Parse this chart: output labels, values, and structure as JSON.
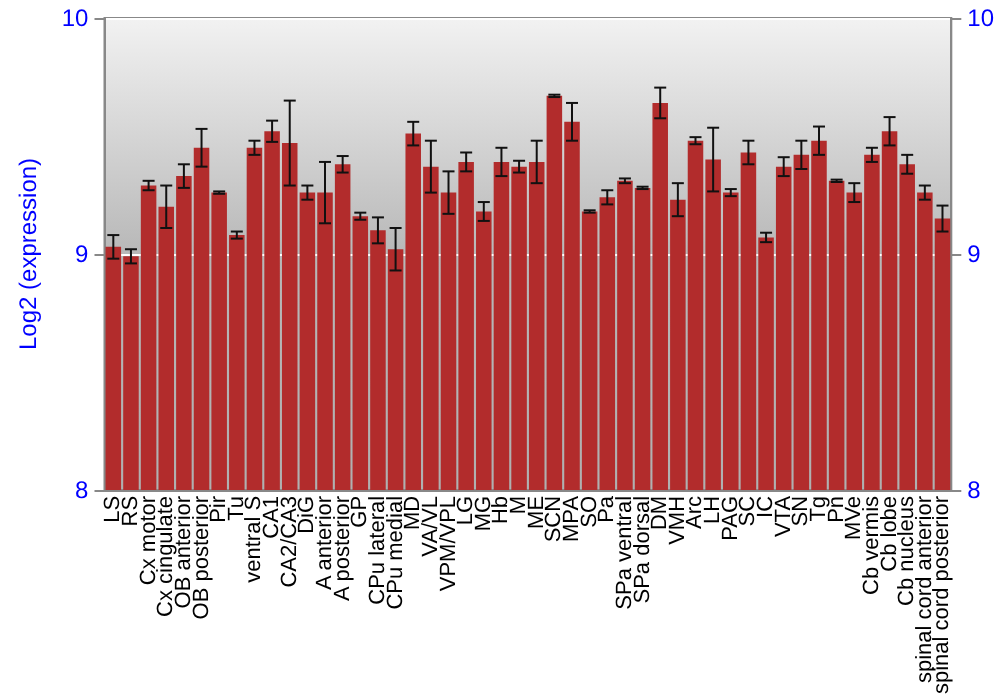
{
  "chart_data": {
    "type": "bar",
    "ylabel": "Log2 (expression)",
    "categories": [
      "LS",
      "RS",
      "Cx motor",
      "Cx cingulate",
      "OB anterior",
      "OB posterior",
      "Pir",
      "Tu",
      "ventral S",
      "CA1",
      "CA2/CA3",
      "DiG",
      "A anterior",
      "A posterior",
      "GP",
      "CPu lateral",
      "CPu medial",
      "MD",
      "VA/VL",
      "VPM/VPL",
      "LG",
      "MG",
      "Hb",
      "M",
      "ME",
      "SCN",
      "MPA",
      "SO",
      "Pa",
      "SPa ventral",
      "SPa dorsal",
      "DM",
      "VMH",
      "Arc",
      "LH",
      "PAG",
      "SC",
      "IC",
      "VTA",
      "SN",
      "Tg",
      "Pn",
      "MVe",
      "Cb vermis",
      "Cb lobe",
      "Cb nucleus",
      "spinal cord anterior",
      "spinal cord posterior"
    ],
    "values": [
      9.03,
      8.99,
      9.29,
      9.2,
      9.33,
      9.45,
      9.26,
      9.08,
      9.45,
      9.52,
      9.47,
      9.26,
      9.26,
      9.38,
      9.16,
      9.1,
      9.02,
      9.51,
      9.37,
      9.26,
      9.39,
      9.18,
      9.39,
      9.37,
      9.39,
      9.67,
      9.56,
      9.18,
      9.24,
      9.31,
      9.28,
      9.64,
      9.23,
      9.48,
      9.4,
      9.26,
      9.43,
      9.07,
      9.37,
      9.42,
      9.48,
      9.31,
      9.26,
      9.42,
      9.52,
      9.38,
      9.26,
      9.15
    ],
    "errors": [
      0.05,
      0.03,
      0.02,
      0.09,
      0.05,
      0.08,
      0.005,
      0.015,
      0.03,
      0.045,
      0.18,
      0.03,
      0.13,
      0.035,
      0.015,
      0.055,
      0.09,
      0.05,
      0.11,
      0.09,
      0.04,
      0.04,
      0.06,
      0.025,
      0.09,
      0.005,
      0.08,
      0.005,
      0.03,
      0.01,
      0.005,
      0.065,
      0.07,
      0.015,
      0.135,
      0.015,
      0.05,
      0.02,
      0.04,
      0.06,
      0.06,
      0.005,
      0.04,
      0.03,
      0.06,
      0.04,
      0.03,
      0.055
    ],
    "color": "#b22c2c",
    "ylim": [
      8,
      10
    ],
    "yticks": [
      8,
      9,
      10
    ],
    "y2lim": [
      8,
      10
    ],
    "y2ticks": [
      8,
      9,
      10
    ],
    "grid": "y"
  }
}
